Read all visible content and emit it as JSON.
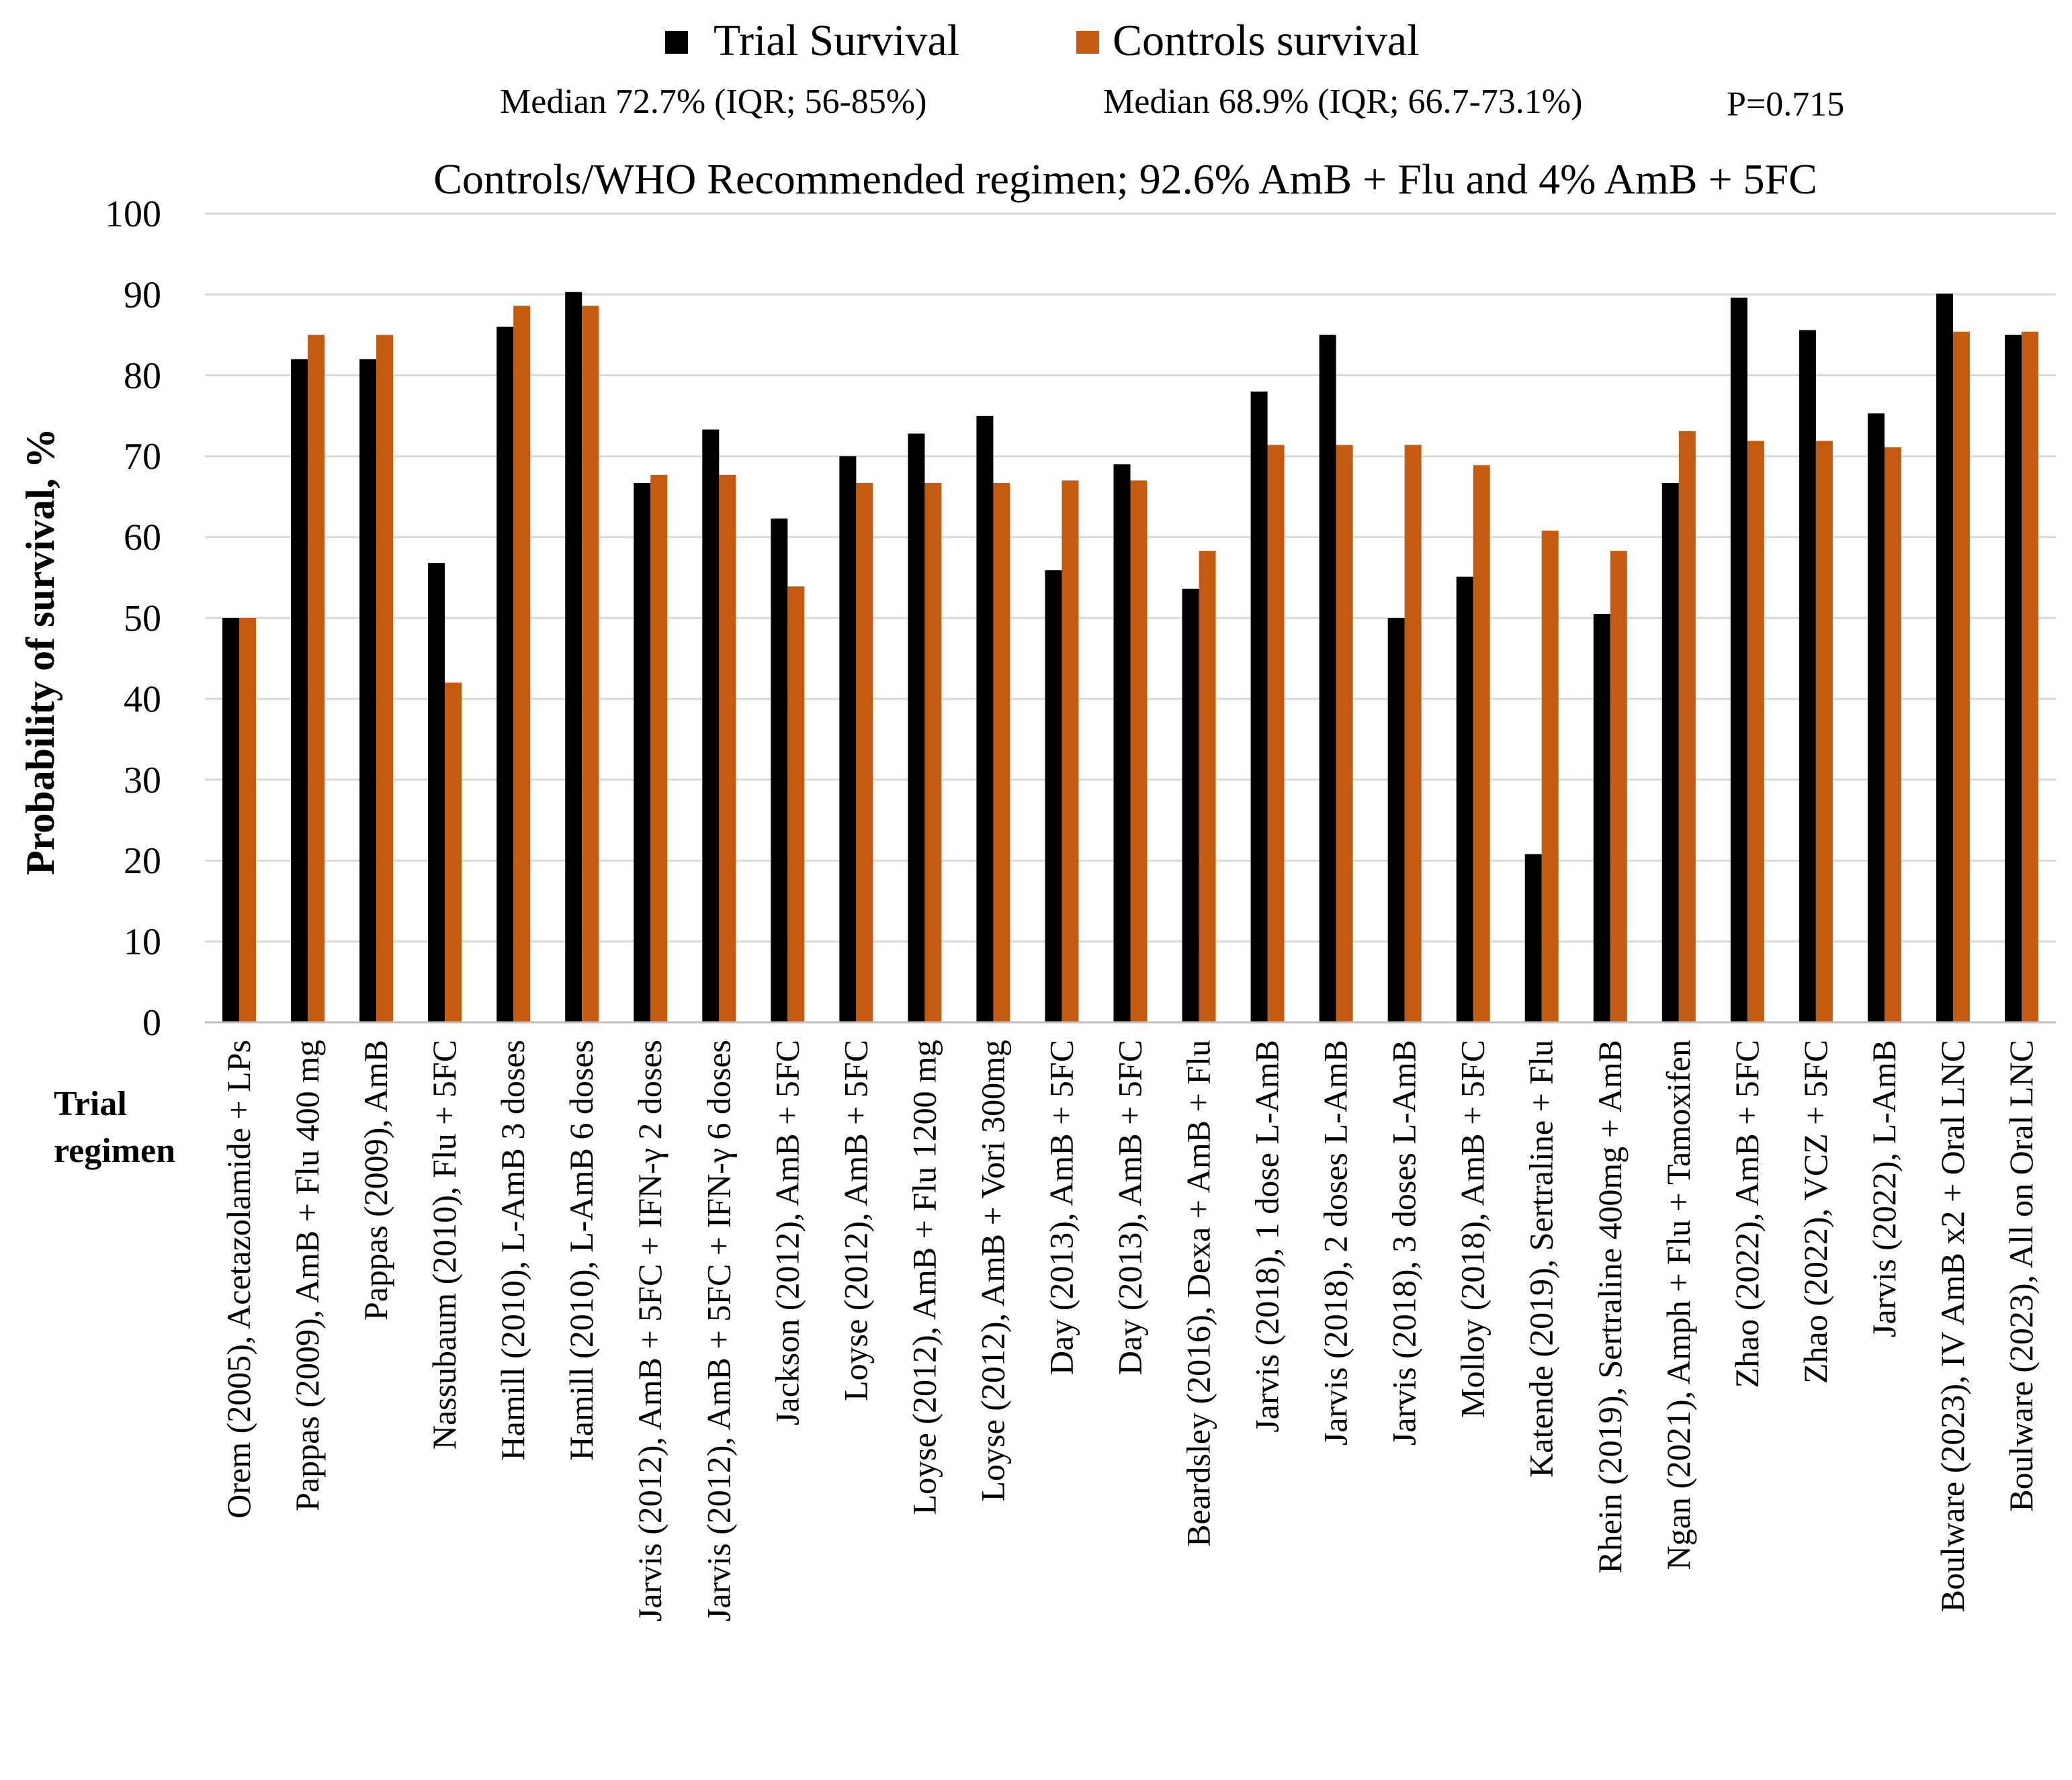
{
  "chart_data": {
    "type": "bar",
    "legend": [
      "Trial Survival",
      "Controls survival"
    ],
    "colors": {
      "trial": "#000000",
      "controls": "#c55a11"
    },
    "annotations": {
      "trial_median": "Median 72.7% (IQR; 56-85%)",
      "controls_median": "Median 68.9% (IQR; 66.7-73.1%)",
      "p_value": "P=0.715"
    },
    "subtitle": "Controls/WHO Recommended regimen; 92.6% AmB + Flu and 4% AmB + 5FC",
    "ylabel": "Probability of survival, %",
    "xlabel": "Trial regimen",
    "ylim": [
      0,
      100
    ],
    "yticks": [
      0,
      10,
      20,
      30,
      40,
      50,
      60,
      70,
      80,
      90,
      100
    ],
    "categories": [
      "Orem (2005), Acetazolamide + LPs",
      "Pappas (2009), AmB + Flu 400 mg",
      "Pappas (2009), AmB",
      "Nassubaum (2010), Flu + 5FC",
      "Hamill (2010), L-AmB 3 doses",
      "Hamill (2010), L-AmB 6 doses",
      "Jarvis (2012), AmB + 5FC + IFN-γ 2 doses",
      "Jarvis (2012), AmB + 5FC + IFN-γ 6 doses",
      "Jackson (2012), AmB + 5FC",
      "Loyse (2012), AmB + 5FC",
      "Loyse (2012), AmB + Flu 1200 mg",
      "Loyse (2012), AmB + Vori 300mg",
      "Day (2013), AmB + 5FC",
      "Day (2013), AmB + 5FC",
      "Beardsley (2016), Dexa + AmB + Flu",
      "Jarvis (2018), 1 dose L-AmB",
      "Jarvis (2018), 2 doses L-AmB",
      "Jarvis (2018), 3 doses L-AmB",
      "Molloy (2018), AmB + 5FC",
      "Katende (2019), Sertraline + Flu",
      "Rhein (2019), Sertraline 400mg + AmB",
      "Ngan (2021), Amph + Flu + Tamoxifen",
      "Zhao (2022), AmB + 5FC",
      "Zhao (2022), VCZ + 5FC",
      "Jarvis (2022), L-AmB",
      "Boulware (2023), IV AmB x2 + Oral LNC",
      "Boulware (2023), All on Oral LNC"
    ],
    "series": [
      {
        "name": "Trial Survival",
        "values": [
          50,
          82,
          82,
          56.8,
          86,
          90.3,
          66.7,
          73.3,
          62.3,
          70,
          72.8,
          75,
          55.9,
          69,
          53.6,
          78,
          85,
          50,
          55.1,
          20.8,
          50.5,
          66.7,
          89.6,
          85.6,
          75.3,
          90.1,
          85
        ]
      },
      {
        "name": "Controls survival",
        "values": [
          50,
          85,
          85,
          42,
          88.6,
          88.6,
          67.7,
          67.7,
          53.9,
          66.7,
          66.7,
          66.7,
          67,
          67,
          58.3,
          71.4,
          71.4,
          71.4,
          68.9,
          60.8,
          58.3,
          73.1,
          71.9,
          71.9,
          71.1,
          85.4,
          85.4
        ]
      }
    ]
  }
}
